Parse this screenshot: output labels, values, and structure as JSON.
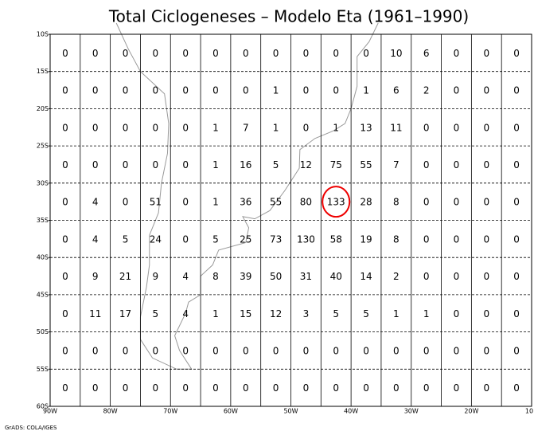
{
  "title": "Total Ciclogeneses – Modelo Eta (1961–1990)",
  "lat_labels": [
    "10S",
    "15S",
    "20S",
    "25S",
    "30S",
    "35S",
    "40S",
    "45S",
    "50S",
    "55S",
    "60S"
  ],
  "lon_labels": [
    "90W",
    "80W",
    "70W",
    "60W",
    "50W",
    "40W",
    "30W",
    "20W",
    "10"
  ],
  "grid": [
    [
      0,
      0,
      0,
      0,
      0,
      0,
      0,
      0,
      0,
      0,
      0,
      10,
      6,
      0,
      0,
      0
    ],
    [
      0,
      0,
      0,
      0,
      0,
      0,
      0,
      1,
      0,
      0,
      1,
      6,
      2,
      0,
      0,
      0
    ],
    [
      0,
      0,
      0,
      0,
      0,
      1,
      7,
      1,
      0,
      1,
      13,
      11,
      0,
      0,
      0,
      0
    ],
    [
      0,
      0,
      0,
      0,
      0,
      1,
      16,
      5,
      12,
      75,
      55,
      7,
      0,
      0,
      0,
      0
    ],
    [
      0,
      4,
      0,
      51,
      0,
      1,
      36,
      55,
      80,
      133,
      28,
      8,
      0,
      0,
      0,
      0
    ],
    [
      0,
      4,
      5,
      24,
      0,
      5,
      25,
      73,
      130,
      58,
      19,
      8,
      0,
      0,
      0,
      0
    ],
    [
      0,
      9,
      21,
      9,
      4,
      8,
      39,
      50,
      31,
      40,
      14,
      2,
      0,
      0,
      0,
      0
    ],
    [
      0,
      11,
      17,
      5,
      4,
      1,
      15,
      12,
      3,
      5,
      5,
      1,
      1,
      0,
      0,
      0
    ],
    [
      0,
      0,
      0,
      0,
      0,
      0,
      0,
      0,
      0,
      0,
      0,
      0,
      0,
      0,
      0,
      0
    ],
    [
      0,
      0,
      0,
      0,
      0,
      0,
      0,
      0,
      0,
      0,
      0,
      0,
      0,
      0,
      0,
      0
    ]
  ],
  "footer": "GrADS: COLA/IGES"
}
